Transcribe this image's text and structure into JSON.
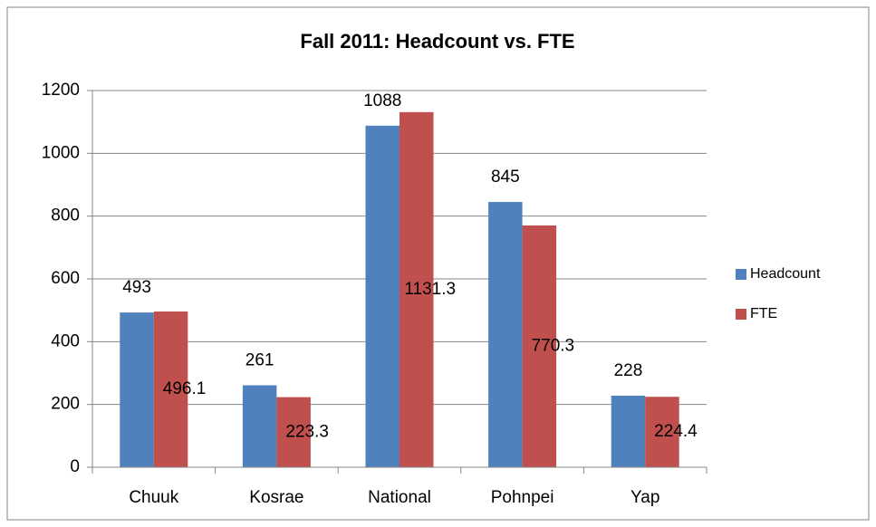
{
  "chart_data": {
    "type": "bar",
    "title": "Fall 2011: Headcount vs. FTE",
    "categories": [
      "Chuuk",
      "Kosrae",
      "National",
      "Pohnpei",
      "Yap"
    ],
    "series": [
      {
        "name": "Headcount",
        "color": "#4f81bd",
        "values": [
          493,
          261,
          1088,
          845,
          228
        ]
      },
      {
        "name": "FTE",
        "color": "#c0504d",
        "values": [
          496.1,
          223.3,
          1131.3,
          770.3,
          224.4
        ]
      }
    ],
    "ylim": [
      0,
      1200
    ],
    "yticks": [
      0,
      200,
      400,
      600,
      800,
      1000,
      1200
    ],
    "grid": true,
    "legend": "right"
  }
}
